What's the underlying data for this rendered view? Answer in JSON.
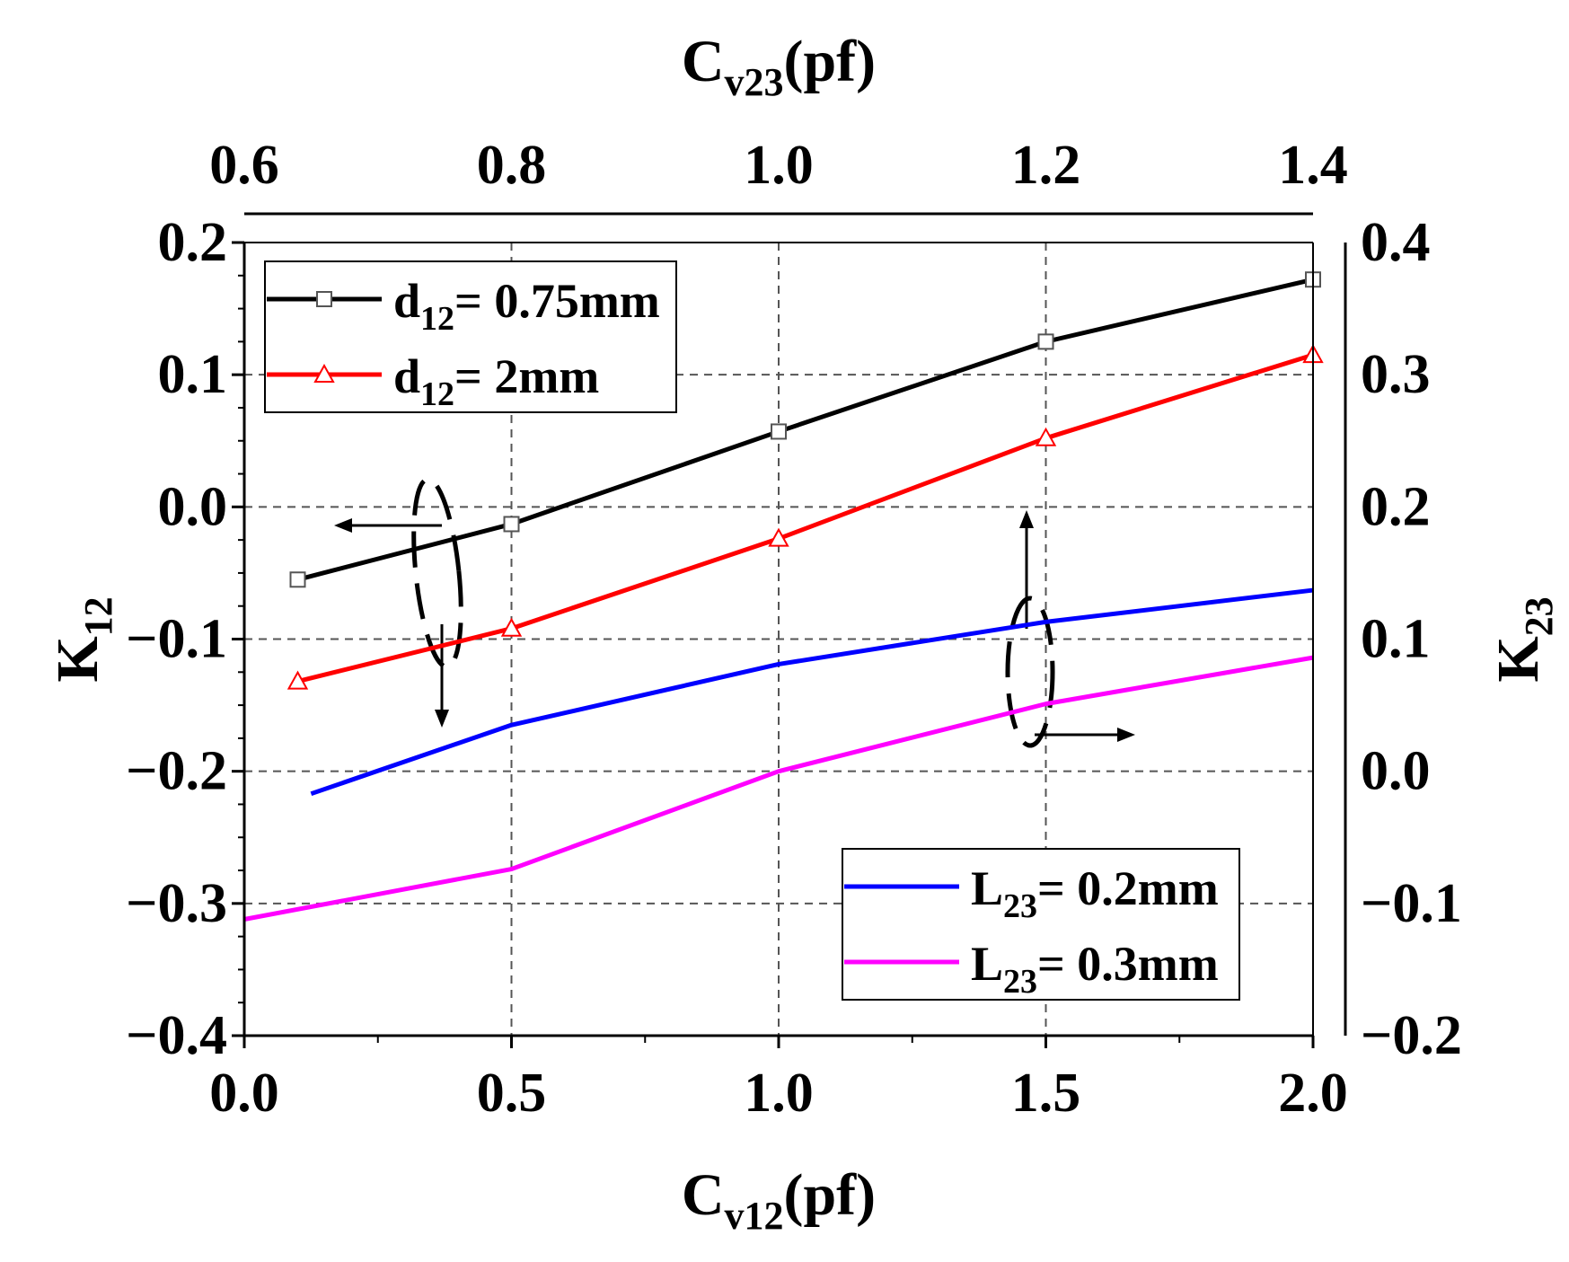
{
  "chart_data": {
    "type": "line",
    "title": "",
    "x_bottom": {
      "label_main": "C",
      "label_sub": "v12",
      "label_suffix": "(pf)",
      "range": [
        0,
        2
      ],
      "ticks": [
        {
          "v": 0,
          "t": "0.0"
        },
        {
          "v": 0.5,
          "t": "0.5"
        },
        {
          "v": 1,
          "t": "1.0"
        },
        {
          "v": 1.5,
          "t": "1.5"
        },
        {
          "v": 2,
          "t": "2.0"
        }
      ]
    },
    "x_top": {
      "label_main": "C",
      "label_sub": "v23",
      "label_suffix": "(pf)",
      "range": [
        0.6,
        1.4
      ],
      "ticks": [
        {
          "v": 0.6,
          "t": "0.6"
        },
        {
          "v": 0.8,
          "t": "0.8"
        },
        {
          "v": 1.0,
          "t": "1.0"
        },
        {
          "v": 1.2,
          "t": "1.2"
        },
        {
          "v": 1.4,
          "t": "1.4"
        }
      ]
    },
    "y_left": {
      "label_main": "K",
      "label_sub": "12",
      "range": [
        -0.4,
        0.2
      ],
      "ticks": [
        {
          "v": 0.2,
          "t": "0.2"
        },
        {
          "v": 0.1,
          "t": "0.1"
        },
        {
          "v": 0,
          "t": "0.0"
        },
        {
          "v": -0.1,
          "t": "−0.1"
        },
        {
          "v": -0.2,
          "t": "−0.2"
        },
        {
          "v": -0.3,
          "t": "−0.3"
        },
        {
          "v": -0.4,
          "t": "−0.4"
        }
      ]
    },
    "y_right": {
      "label_main": "K",
      "label_sub": "23",
      "range": [
        -0.2,
        0.4
      ],
      "ticks": [
        {
          "v": 0.4,
          "t": "0.4"
        },
        {
          "v": 0.3,
          "t": "0.3"
        },
        {
          "v": 0.2,
          "t": "0.2"
        },
        {
          "v": 0.1,
          "t": "0.1"
        },
        {
          "v": 0,
          "t": "0.0"
        },
        {
          "v": -0.1,
          "t": "−0.1"
        },
        {
          "v": -0.2,
          "t": "−0.2"
        }
      ]
    },
    "grid": true,
    "series": [
      {
        "name": "d12_075",
        "color": "#000000",
        "marker": "square",
        "axis": "left",
        "legend_main": "d",
        "legend_sub": "12",
        "legend_suffix": "= 0.75mm",
        "x": [
          0.1,
          0.5,
          1.0,
          1.5,
          2.0
        ],
        "y": [
          -0.055,
          -0.013,
          0.057,
          0.125,
          0.172
        ]
      },
      {
        "name": "d12_2",
        "color": "#ff0000",
        "marker": "triangle",
        "axis": "left",
        "legend_main": "d",
        "legend_sub": "12",
        "legend_suffix": "= 2mm",
        "x": [
          0.1,
          0.5,
          1.0,
          1.5,
          2.0
        ],
        "y": [
          -0.132,
          -0.092,
          -0.024,
          0.052,
          0.115
        ]
      },
      {
        "name": "L23_02",
        "color": "#0000ff",
        "marker": "none",
        "axis": "right",
        "legend_main": "L",
        "legend_sub": "23",
        "legend_suffix": "= 0.2mm",
        "x": [
          0.65,
          0.8,
          1.0,
          1.2,
          1.4
        ],
        "y": [
          -0.017,
          0.035,
          0.081,
          0.113,
          0.137
        ]
      },
      {
        "name": "L23_03",
        "color": "#ff00ff",
        "marker": "none",
        "axis": "right",
        "legend_main": "L",
        "legend_sub": "23",
        "legend_suffix": "= 0.3mm",
        "x": [
          0.6,
          0.8,
          1.0,
          1.2,
          1.4
        ],
        "y": [
          -0.112,
          -0.074,
          0.0,
          0.051,
          0.086
        ]
      }
    ],
    "legends": [
      {
        "position": "top-left",
        "series": [
          "d12_075",
          "d12_2"
        ]
      },
      {
        "position": "bottom-right",
        "series": [
          "L23_02",
          "L23_03"
        ]
      }
    ],
    "annotations": [
      {
        "type": "ellipse-arrow",
        "series": [
          "d12_075",
          "d12_2"
        ],
        "direction": "left-axis"
      },
      {
        "type": "ellipse-arrow",
        "series": [
          "L23_02",
          "L23_03"
        ],
        "direction": "right-axis"
      }
    ]
  }
}
